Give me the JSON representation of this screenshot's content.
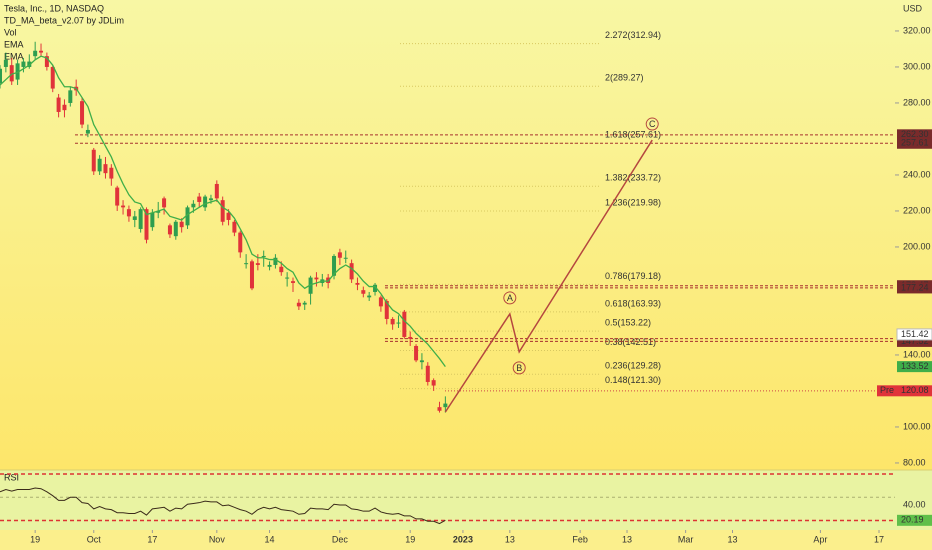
{
  "chart_data": {
    "type": "candlestick",
    "title": "Tesla, Inc., 1D, NASDAQ",
    "indicators": [
      "TD_MA_beta_v2.07 by JDLim",
      "Vol",
      "EMA",
      "EMA"
    ],
    "currency": "USD",
    "up_color": "#2e9e4f",
    "down_color": "#e0333a",
    "open": [
      291,
      300,
      301,
      293,
      300,
      300,
      306,
      309,
      306,
      300,
      283,
      279,
      280,
      289,
      281,
      263,
      254,
      242,
      246,
      244,
      233,
      223,
      221,
      215,
      210,
      221,
      211,
      219,
      227,
      212,
      206,
      214,
      212,
      222,
      228,
      222,
      226,
      235,
      226,
      219,
      214,
      208,
      191,
      192,
      191,
      195,
      189,
      190,
      189,
      183,
      181,
      169,
      168,
      174,
      183,
      180,
      183,
      184,
      197,
      194,
      191,
      180,
      176,
      172,
      175,
      172,
      170,
      160,
      158,
      164,
      150,
      145,
      136,
      134,
      126,
      111,
      111
    ],
    "high": [
      301,
      308,
      305,
      304,
      305,
      307,
      314,
      313,
      308,
      301,
      285,
      282,
      289,
      293,
      283,
      268,
      255,
      251,
      250,
      246,
      234,
      226,
      223,
      220,
      222,
      222,
      221,
      225,
      228,
      213,
      215,
      216,
      223,
      226,
      230,
      229,
      229,
      237,
      228,
      221,
      215,
      209,
      196,
      193,
      196,
      198,
      192,
      196,
      192,
      186,
      183,
      171,
      170,
      184,
      186,
      185,
      185,
      196,
      199,
      198,
      193,
      183,
      178,
      175,
      180,
      173,
      171,
      161,
      162,
      165,
      153,
      146,
      141,
      136,
      127,
      114,
      117
    ],
    "low": [
      288,
      297,
      290,
      290,
      297,
      299,
      304,
      306,
      298,
      286,
      272,
      272,
      278,
      284,
      266,
      261,
      240,
      240,
      238,
      234,
      220,
      218,
      214,
      211,
      208,
      202,
      209,
      216,
      218,
      205,
      204,
      208,
      210,
      219,
      222,
      220,
      224,
      225,
      212,
      212,
      206,
      194,
      188,
      176,
      187,
      189,
      187,
      188,
      184,
      178,
      175,
      165,
      165,
      168,
      178,
      178,
      177,
      182,
      190,
      191,
      180,
      176,
      172,
      170,
      173,
      164,
      157,
      154,
      155,
      149,
      145,
      136,
      132,
      123,
      120,
      108,
      108
    ],
    "close": [
      299,
      304,
      292,
      302,
      303,
      303,
      309,
      308,
      300,
      288,
      275,
      276,
      287,
      287,
      268,
      265,
      242,
      249,
      241,
      238,
      223,
      222,
      217,
      217,
      221,
      204,
      219,
      220,
      222,
      207,
      214,
      211,
      222,
      224,
      225,
      228,
      227,
      227,
      214,
      215,
      208,
      197,
      191,
      177,
      190,
      195,
      190,
      194,
      186,
      183,
      180,
      167,
      169,
      183,
      182,
      182,
      180,
      195,
      194,
      194,
      182,
      179,
      174,
      173,
      179,
      167,
      160,
      157,
      158,
      150,
      149,
      137,
      137,
      125,
      123,
      109,
      113
    ],
    "xlim": [
      0,
      152.73
    ],
    "xticks": [
      {
        "value": 6,
        "label": "19"
      },
      {
        "value": 16,
        "label": "Oct"
      },
      {
        "value": 26,
        "label": "17"
      },
      {
        "value": 37,
        "label": "Nov"
      },
      {
        "value": 46,
        "label": "14"
      },
      {
        "value": 58,
        "label": "Dec"
      },
      {
        "value": 70,
        "label": "19"
      },
      {
        "value": 79,
        "label": "2023"
      },
      {
        "value": 87,
        "label": "13"
      },
      {
        "value": 99,
        "label": "Feb"
      },
      {
        "value": 107,
        "label": "13"
      },
      {
        "value": 117,
        "label": "Mar"
      },
      {
        "value": 125,
        "label": "13"
      },
      {
        "value": 140,
        "label": "Apr"
      },
      {
        "value": 150,
        "label": "17"
      }
    ],
    "ylim": [
      77.2,
      337.2
    ],
    "yticks": [
      {
        "value": 320,
        "label": "320.00"
      },
      {
        "value": 300,
        "label": "300.00"
      },
      {
        "value": 280,
        "label": "280.00"
      },
      {
        "value": 240,
        "label": "240.00"
      },
      {
        "value": 220,
        "label": "220.00"
      },
      {
        "value": 200,
        "label": "200.00"
      },
      {
        "value": 140,
        "label": "140.00"
      },
      {
        "value": 100,
        "label": "100.00"
      },
      {
        "value": 80,
        "label": "80.00"
      }
    ],
    "ema": {
      "name": "EMA",
      "color": "#3fae49",
      "values": [
        290,
        293,
        296,
        297,
        299,
        301,
        304,
        306,
        305,
        301,
        294,
        289,
        289,
        288,
        283,
        278,
        268,
        262,
        256,
        250,
        242,
        235,
        229,
        225,
        224,
        218,
        219,
        220,
        221,
        217,
        216,
        215,
        218,
        220,
        222,
        224,
        225,
        226,
        222,
        220,
        216,
        210,
        204,
        196,
        194,
        194,
        193,
        193,
        191,
        188,
        186,
        180,
        177,
        179,
        180,
        181,
        181,
        185,
        188,
        190,
        188,
        185,
        181,
        178,
        178,
        174,
        169,
        165,
        163,
        159,
        156,
        152,
        149,
        146,
        142,
        138,
        133.52
      ]
    },
    "levels": [
      {
        "value": 262.3,
        "label": "262.30"
      },
      {
        "value": 257.61,
        "label": "257.61"
      },
      {
        "value": 178.47,
        "label": "178.47"
      },
      {
        "value": 177.24,
        "label": "177.24"
      },
      {
        "value": 149.1,
        "label": "149.10"
      },
      {
        "value": 147.52,
        "label": "147.52"
      }
    ],
    "level_color": "#a8322f",
    "last_price": 151.42,
    "premarket": {
      "tag": "Pre",
      "value": 120.08
    },
    "fib_levels": [
      {
        "value": 312.94,
        "label": "2.272(312.94)"
      },
      {
        "value": 289.27,
        "label": "2(289.27)"
      },
      {
        "value": 257.61,
        "label": "1.618(257.61)"
      },
      {
        "value": 233.72,
        "label": "1.382(233.72)"
      },
      {
        "value": 219.98,
        "label": "1.236(219.98)"
      },
      {
        "value": 179.18,
        "label": "0.786(179.18)"
      },
      {
        "value": 163.93,
        "label": "0.618(163.93)"
      },
      {
        "value": 153.22,
        "label": "0.5(153.22)"
      },
      {
        "value": 142.51,
        "label": "0.38(142.51)"
      },
      {
        "value": 129.28,
        "label": "0.236(129.28)"
      },
      {
        "value": 121.3,
        "label": "0.148(121.30)"
      }
    ],
    "projection": {
      "color": "#b5473f",
      "x": [
        76,
        87,
        88.6,
        111.3
      ],
      "values": [
        108.3,
        162.8,
        141.7,
        259.4
      ],
      "labels": [
        null,
        "A",
        "B",
        "C"
      ]
    },
    "rsi": {
      "title": "RSI",
      "color": "#3a2a1a",
      "ylim": [
        7.7,
        85.2
      ],
      "yticks": [
        {
          "value": 40,
          "label": "40.00"
        }
      ],
      "bands": [
        80,
        50,
        20
      ],
      "values": [
        57,
        60,
        58,
        60,
        60,
        60,
        62,
        61,
        57,
        52,
        46,
        46,
        50,
        50,
        43,
        42,
        35,
        38,
        35,
        34,
        30,
        30,
        29,
        29,
        32,
        27,
        35,
        36,
        37,
        32,
        36,
        35,
        41,
        42,
        43,
        45,
        44,
        44,
        39,
        40,
        37,
        34,
        32,
        28,
        34,
        37,
        35,
        37,
        34,
        33,
        32,
        28,
        29,
        36,
        35,
        35,
        34,
        41,
        40,
        40,
        35,
        34,
        32,
        32,
        36,
        31,
        29,
        28,
        29,
        26,
        26,
        22,
        22,
        19,
        19,
        16,
        20.19
      ]
    }
  }
}
